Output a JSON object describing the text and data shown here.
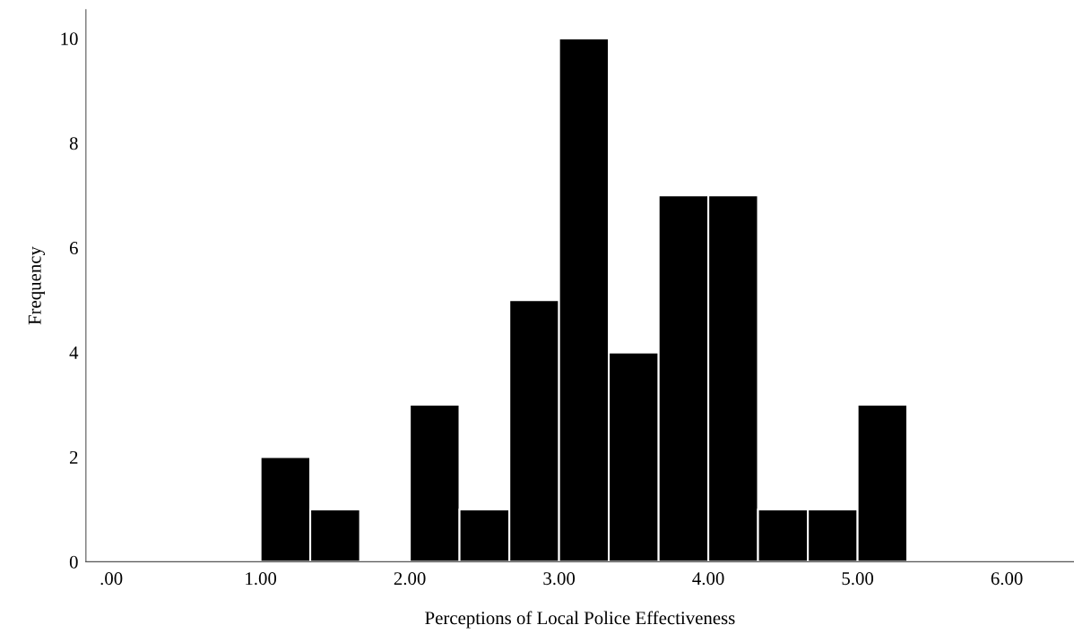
{
  "chart_data": {
    "type": "histogram",
    "xlabel": "Perceptions of Local Police Effectiveness",
    "ylabel": "Frequency",
    "bins": [
      1.0,
      1.333,
      1.667,
      2.0,
      2.333,
      2.667,
      3.0,
      3.333,
      3.667,
      4.0,
      4.333,
      4.667,
      5.0,
      5.333
    ],
    "values": [
      2,
      1,
      0,
      3,
      1,
      5,
      10,
      4,
      7,
      7,
      1,
      1,
      3
    ],
    "color": "#000000",
    "xlim": [
      -0.17,
      6.45
    ],
    "ylim": [
      0,
      10.55
    ],
    "xticks": [
      {
        "value": 0,
        "label": ".00"
      },
      {
        "value": 1,
        "label": "1.00"
      },
      {
        "value": 2,
        "label": "2.00"
      },
      {
        "value": 3,
        "label": "3.00"
      },
      {
        "value": 4,
        "label": "4.00"
      },
      {
        "value": 5,
        "label": "5.00"
      },
      {
        "value": 6,
        "label": "6.00"
      }
    ],
    "yticks": [
      0,
      2,
      4,
      6,
      8,
      10
    ],
    "grid": false
  }
}
